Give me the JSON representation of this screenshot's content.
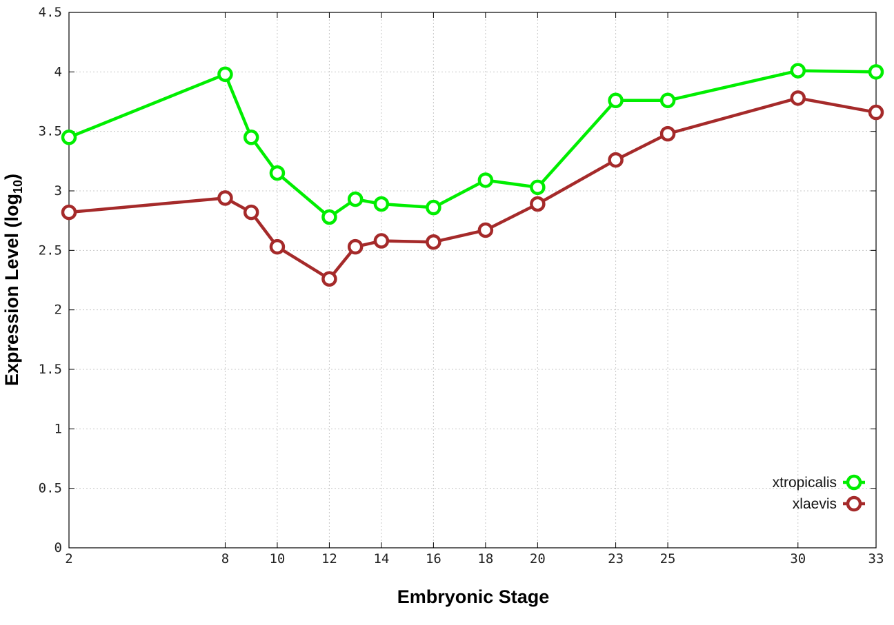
{
  "chart_data": {
    "type": "line",
    "xlabel": "Embryonic Stage",
    "ylabel_main": "Expression Level (log",
    "ylabel_sub": "10",
    "ylabel_close": ")",
    "x": [
      2,
      8,
      9,
      10,
      12,
      13,
      14,
      16,
      18,
      20,
      23,
      25,
      30,
      33
    ],
    "xlim": [
      2,
      33
    ],
    "xticks": [
      2,
      8,
      10,
      12,
      14,
      16,
      18,
      20,
      23,
      25,
      30,
      33
    ],
    "ylim": [
      0,
      4.5
    ],
    "yticks": [
      0,
      0.5,
      1,
      1.5,
      2,
      2.5,
      3,
      3.5,
      4,
      4.5
    ],
    "ytick_labels": [
      "0",
      "0.5",
      "1",
      "1.5",
      "2",
      "2.5",
      "3",
      "3.5",
      "4",
      "4.5"
    ],
    "grid": true,
    "legend_position": "bottom-right",
    "series": [
      {
        "name": "xtropicalis",
        "color": "#00ee00",
        "values": [
          3.45,
          3.98,
          3.45,
          3.15,
          2.78,
          2.93,
          2.89,
          2.86,
          3.09,
          3.03,
          3.76,
          3.76,
          4.01,
          4.0
        ]
      },
      {
        "name": "xlaevis",
        "color": "#a52a2a",
        "values": [
          2.82,
          2.94,
          2.82,
          2.53,
          2.26,
          2.53,
          2.58,
          2.57,
          2.67,
          2.89,
          3.26,
          3.48,
          3.78,
          3.66
        ]
      }
    ]
  }
}
